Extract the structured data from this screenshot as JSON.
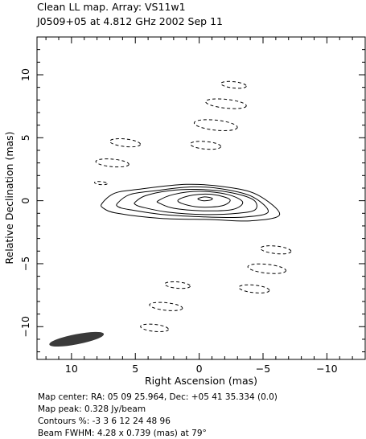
{
  "header": {
    "title": "Clean LL map.  Array:  VS11w1",
    "subtitle": "J0509+05 at 4.812 GHz 2002 Sep 11"
  },
  "footer": {
    "line1": "Map center:  RA: 05 09 25.964,  Dec: +05 41 35.334 (0.0)",
    "line2": "Map peak: 0.328 Jy/beam",
    "line3": "Contours %: -3 3 6 12 24 48 96",
    "line4": "Beam FWHM: 4.28 x 0.739 (mas) at 79°"
  },
  "chart_data": {
    "type": "contour",
    "xlabel": "Right Ascension  (mas)",
    "ylabel": "Relative Declination  (mas)",
    "xlim": [
      12.7,
      -13.0
    ],
    "ylim": [
      -12.6,
      13.0
    ],
    "x_ticks": [
      10,
      5,
      0,
      -5,
      -10
    ],
    "y_ticks": [
      10,
      5,
      0,
      -5,
      -10
    ],
    "x_tick_labels": [
      "10",
      "5",
      "0",
      "−5",
      "−10"
    ],
    "y_tick_labels": [
      "10",
      "5",
      "0",
      "−5",
      "−10"
    ],
    "contour_levels_percent": [
      -3,
      3,
      6,
      12,
      24,
      48,
      96
    ],
    "peak_jy_per_beam": 0.328,
    "beam": {
      "major_mas": 4.28,
      "minor_mas": 0.739,
      "pa_deg": 79,
      "center_mas": [
        9.6,
        -11.0
      ]
    },
    "positive_contours": [
      {
        "level_percent": 3,
        "points": [
          [
            7.6,
            -0.2
          ],
          [
            6.6,
            0.6
          ],
          [
            4.8,
            0.9
          ],
          [
            1.0,
            1.3
          ],
          [
            -2.0,
            1.1
          ],
          [
            -4.5,
            0.5
          ],
          [
            -6.3,
            -1.1
          ],
          [
            -4.0,
            -1.6
          ],
          [
            -1.0,
            -1.5
          ],
          [
            3.0,
            -1.4
          ],
          [
            6.4,
            -1.0
          ],
          [
            7.5,
            -0.6
          ]
        ]
      },
      {
        "level_percent": 6,
        "points": [
          [
            6.4,
            -0.2
          ],
          [
            5.4,
            0.5
          ],
          [
            3.4,
            0.8
          ],
          [
            0.5,
            1.1
          ],
          [
            -2.0,
            0.9
          ],
          [
            -4.2,
            0.3
          ],
          [
            -5.4,
            -0.9
          ],
          [
            -3.5,
            -1.3
          ],
          [
            -0.8,
            -1.3
          ],
          [
            2.8,
            -1.1
          ],
          [
            5.5,
            -0.7
          ],
          [
            6.3,
            -0.5
          ]
        ]
      },
      {
        "level_percent": 12,
        "points": [
          [
            5.0,
            -0.1
          ],
          [
            4.2,
            0.4
          ],
          [
            2.3,
            0.8
          ],
          [
            0.2,
            0.9
          ],
          [
            -2.2,
            0.7
          ],
          [
            -4.2,
            0.1
          ],
          [
            -4.4,
            -0.7
          ],
          [
            -3.0,
            -1.0
          ],
          [
            -0.5,
            -1.1
          ],
          [
            2.5,
            -0.9
          ],
          [
            4.5,
            -0.5
          ],
          [
            5.0,
            -0.3
          ]
        ]
      },
      {
        "level_percent": 24,
        "points": [
          [
            3.2,
            0.0
          ],
          [
            2.0,
            0.5
          ],
          [
            0.0,
            0.75
          ],
          [
            -2.2,
            0.5
          ],
          [
            -3.4,
            -0.1
          ],
          [
            -2.6,
            -0.7
          ],
          [
            -0.3,
            -0.8
          ],
          [
            2.0,
            -0.6
          ],
          [
            3.1,
            -0.2
          ]
        ]
      },
      {
        "level_percent": 48,
        "points": [
          [
            1.6,
            0.1
          ],
          [
            0.5,
            0.45
          ],
          [
            -1.0,
            0.5
          ],
          [
            -2.4,
            0.1
          ],
          [
            -1.8,
            -0.4
          ],
          [
            0.0,
            -0.5
          ],
          [
            1.4,
            -0.2
          ]
        ]
      },
      {
        "level_percent": 96,
        "points": [
          [
            0.1,
            0.15
          ],
          [
            -0.4,
            0.3
          ],
          [
            -1.0,
            0.2
          ],
          [
            -0.9,
            0.05
          ],
          [
            -0.3,
            0.0
          ]
        ]
      }
    ],
    "negative_contours": [
      {
        "level_percent": -3,
        "cx": -2.7,
        "cy": 9.2,
        "rx": 1.0,
        "ry": 0.25,
        "angle": 6
      },
      {
        "level_percent": -3,
        "cx": -2.1,
        "cy": 7.7,
        "rx": 1.6,
        "ry": 0.35,
        "angle": 6
      },
      {
        "level_percent": -3,
        "cx": -1.3,
        "cy": 6.0,
        "rx": 1.7,
        "ry": 0.4,
        "angle": 6
      },
      {
        "level_percent": -3,
        "cx": -0.5,
        "cy": 4.4,
        "rx": 1.2,
        "ry": 0.3,
        "angle": 5
      },
      {
        "level_percent": -3,
        "cx": 5.8,
        "cy": 4.6,
        "rx": 1.2,
        "ry": 0.3,
        "angle": 6
      },
      {
        "level_percent": -3,
        "cx": 6.8,
        "cy": 3.0,
        "rx": 1.3,
        "ry": 0.3,
        "angle": 5
      },
      {
        "level_percent": -3,
        "cx": 7.7,
        "cy": 1.4,
        "rx": 0.5,
        "ry": 0.12,
        "angle": 5
      },
      {
        "level_percent": -3,
        "cx": -6.0,
        "cy": -3.9,
        "rx": 1.2,
        "ry": 0.3,
        "angle": 6
      },
      {
        "level_percent": -3,
        "cx": -5.3,
        "cy": -5.4,
        "rx": 1.5,
        "ry": 0.35,
        "angle": 6
      },
      {
        "level_percent": -3,
        "cx": -4.3,
        "cy": -7.0,
        "rx": 1.2,
        "ry": 0.3,
        "angle": 6
      },
      {
        "level_percent": -3,
        "cx": 1.7,
        "cy": -6.7,
        "rx": 1.0,
        "ry": 0.25,
        "angle": 5
      },
      {
        "level_percent": -3,
        "cx": 2.6,
        "cy": -8.4,
        "rx": 1.3,
        "ry": 0.3,
        "angle": 6
      },
      {
        "level_percent": -3,
        "cx": 3.5,
        "cy": -10.1,
        "rx": 1.1,
        "ry": 0.28,
        "angle": 6
      }
    ]
  }
}
